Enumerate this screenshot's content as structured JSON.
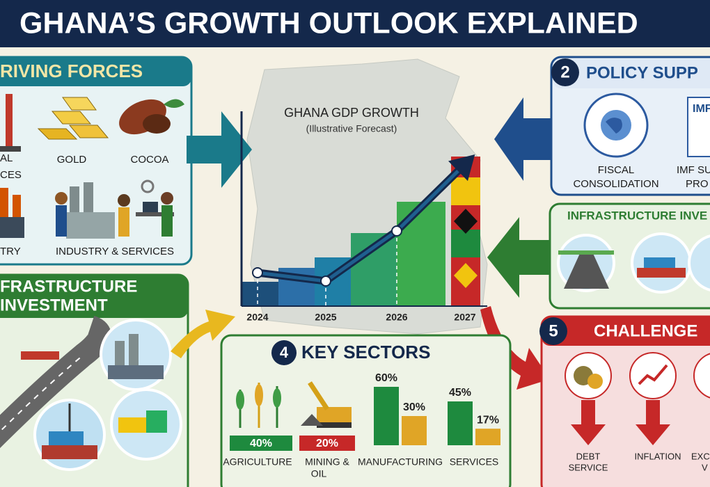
{
  "header": {
    "title": "GHANA’S GROWTH OUTLOOK EXPLAINED"
  },
  "driving_forces": {
    "title": "RIVING FORCES",
    "labels": [
      "AL",
      "CES",
      "GOLD",
      "COCOA",
      "TRY",
      "INDUSTRY & SERVICES"
    ]
  },
  "infrastructure_left": {
    "title": [
      "FRASTRUCTURE",
      "INVESTMENT"
    ]
  },
  "chart_data": {
    "type": "line",
    "title": "GHANA GDP GROWTH",
    "subtitle": "(Illustrative Forecast)",
    "categories": [
      "2024",
      "2025",
      "2026",
      "2027"
    ],
    "values": [
      20,
      15,
      45,
      85
    ],
    "ylim": [
      0,
      100
    ],
    "color": "#1f5f8f"
  },
  "policy_support": {
    "number": "2",
    "title": "POLICY SUPP",
    "badge": "IMF",
    "labels": [
      "FISCAL",
      "CONSOLIDATION",
      "IMF SU",
      "PRO"
    ]
  },
  "infrastructure_right": {
    "title": "INFRASTRUCTURE INVE"
  },
  "challenges": {
    "number": "5",
    "title": "CHALLENGE",
    "labels": [
      "DEBT",
      "SERVICE",
      "INFLATION",
      "EXC",
      "V"
    ]
  },
  "key_sectors": {
    "number": "4",
    "title": "KEY SECTORS",
    "agriculture": {
      "name": "AGRICULTURE",
      "label": "40%"
    },
    "mining": {
      "name": [
        "MINING &",
        "OIL"
      ],
      "label": "20%"
    },
    "bars": [
      {
        "name": "MANUFACTURING",
        "values": [
          60,
          30
        ],
        "value_labels": [
          "60%",
          "30%"
        ]
      },
      {
        "name": "SERVICES",
        "values": [
          45,
          17
        ],
        "value_labels": [
          "45%",
          "17%"
        ]
      }
    ],
    "colors": [
      "#1e8a3e",
      "#e0a526"
    ]
  }
}
